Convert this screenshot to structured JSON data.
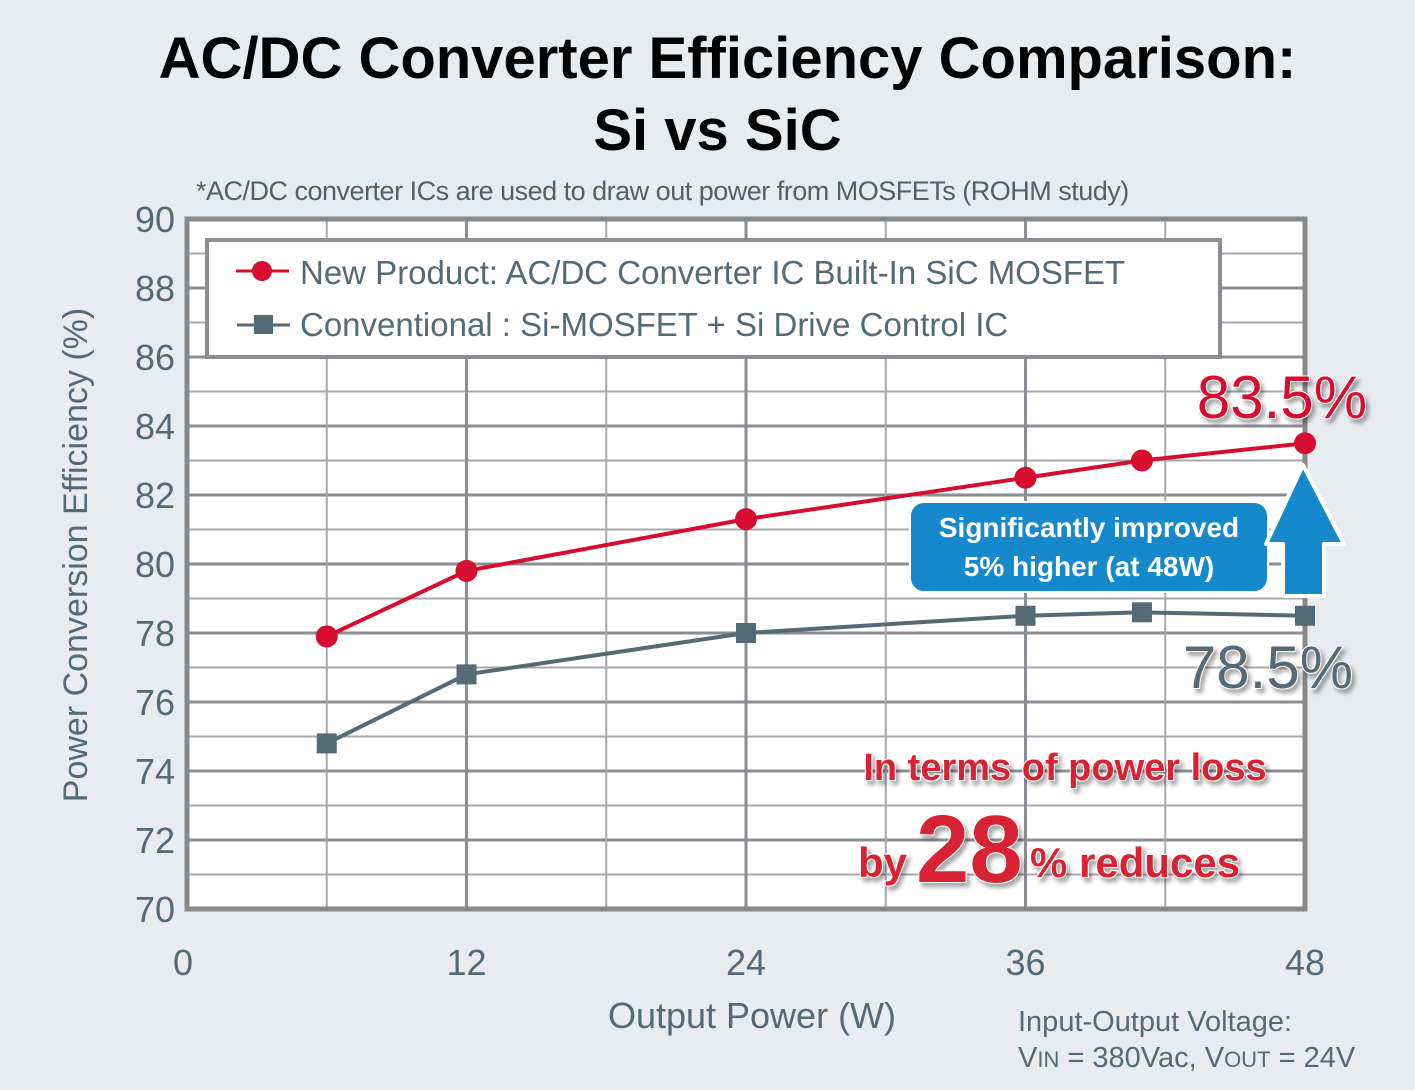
{
  "title_line1": "AC/DC Converter Efficiency Comparison:",
  "title_line2": "Si vs SiC",
  "subtitle": "*AC/DC converter ICs are used to draw out power from MOSFETs (ROHM study)",
  "footnote": {
    "line1": "Input-Output Voltage:",
    "vin_label": "V",
    "vin_sub": "IN",
    "vin_value": " = 380Vac, ",
    "vout_label": "V",
    "vout_sub": "OUT",
    "vout_value": " = 24V"
  },
  "colors": {
    "new_product": "#d60d2f",
    "conventional": "#546a75",
    "callout": "#1589cc",
    "annotation_red": "#d62430"
  },
  "chart_data": {
    "type": "line",
    "title": "AC/DC Converter Efficiency Comparison: Si vs SiC",
    "xlabel": "Output Power  (W)",
    "ylabel": "Power Conversion Efficiency (%)",
    "xlim": [
      0,
      48
    ],
    "ylim": [
      70,
      90
    ],
    "xticks": [
      0,
      12,
      24,
      36,
      48
    ],
    "yticks": [
      70,
      72,
      74,
      76,
      78,
      80,
      82,
      84,
      86,
      88,
      90
    ],
    "grid": true,
    "legend_position": "top",
    "series": [
      {
        "name": "New Product: AC/DC Converter IC Built-In SiC MOSFET",
        "marker": "circle",
        "x": [
          6,
          12,
          24,
          36,
          41,
          48
        ],
        "values": [
          77.9,
          79.8,
          81.3,
          82.5,
          83.0,
          83.5
        ]
      },
      {
        "name": "Conventional : Si-MOSFET + Si Drive Control IC",
        "marker": "square",
        "x": [
          6,
          12,
          24,
          36,
          41,
          48
        ],
        "values": [
          74.8,
          76.8,
          78.0,
          78.5,
          78.6,
          78.5
        ]
      }
    ],
    "annotations": {
      "new_value_label": "83.5%",
      "conv_value_label": "78.5%",
      "callout_line1": "Significantly improved",
      "callout_line2": "5% higher (at 48W)",
      "loss_line1": "In terms of power loss",
      "loss_by": "by",
      "loss_number": "28",
      "loss_rest": "% reduces"
    }
  }
}
